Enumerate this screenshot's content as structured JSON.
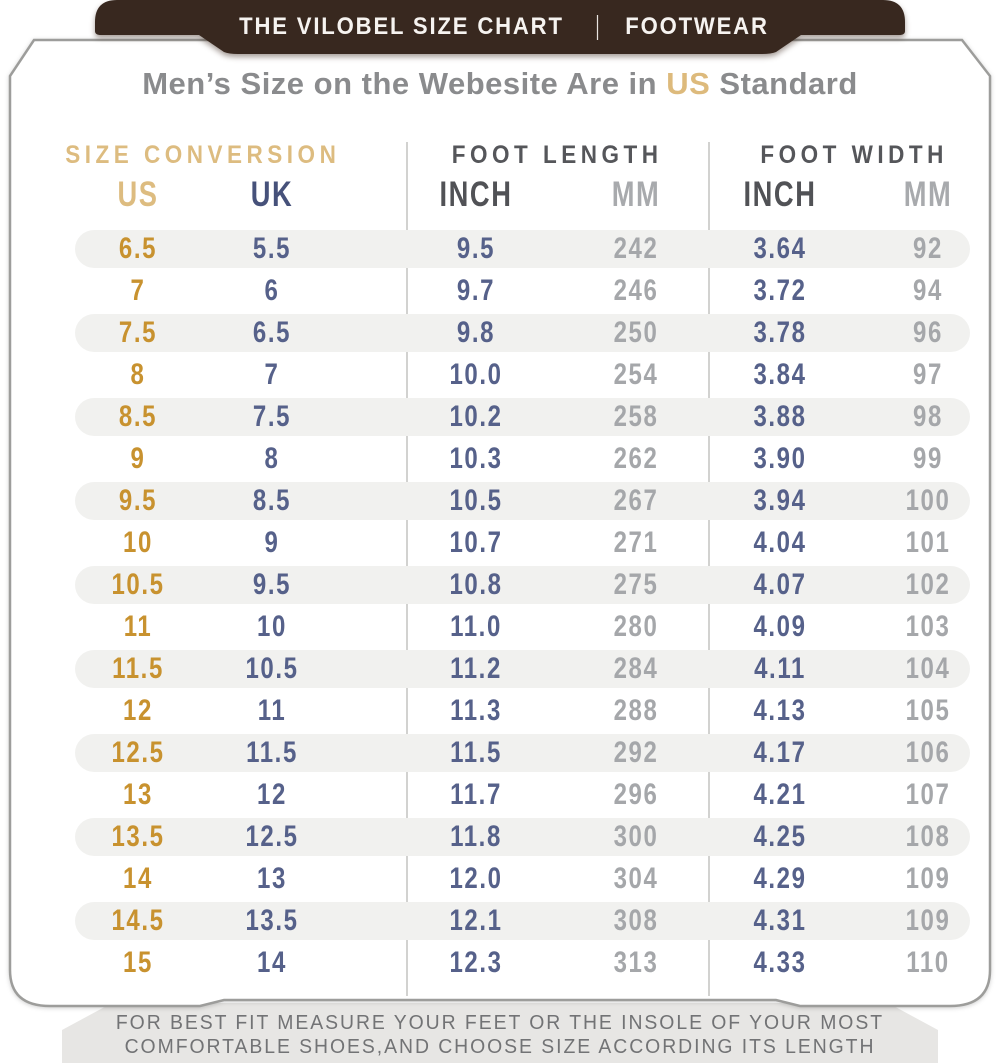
{
  "banner": {
    "left": "THE VILOBEL SIZE CHART",
    "separator": "|",
    "right": "FOOTWEAR"
  },
  "title": {
    "prefix": "Men’s Size on the Webesite Are in ",
    "highlight": "US",
    "suffix": " Standard"
  },
  "chart_data": {
    "type": "table",
    "title": "Men’s Size on the Webesite Are in US Standard",
    "groups": [
      {
        "label": "SIZE CONVERSION",
        "columns": [
          "US",
          "UK"
        ]
      },
      {
        "label": "FOOT LENGTH",
        "columns": [
          "INCH",
          "MM"
        ]
      },
      {
        "label": "FOOT WIDTH",
        "columns": [
          "INCH",
          "MM"
        ]
      }
    ],
    "column_headers": [
      "US",
      "UK",
      "INCH",
      "MM",
      "INCH",
      "MM"
    ],
    "rows": [
      [
        "6.5",
        "5.5",
        "9.5",
        "242",
        "3.64",
        "92"
      ],
      [
        "7",
        "6",
        "9.7",
        "246",
        "3.72",
        "94"
      ],
      [
        "7.5",
        "6.5",
        "9.8",
        "250",
        "3.78",
        "96"
      ],
      [
        "8",
        "7",
        "10.0",
        "254",
        "3.84",
        "97"
      ],
      [
        "8.5",
        "7.5",
        "10.2",
        "258",
        "3.88",
        "98"
      ],
      [
        "9",
        "8",
        "10.3",
        "262",
        "3.90",
        "99"
      ],
      [
        "9.5",
        "8.5",
        "10.5",
        "267",
        "3.94",
        "100"
      ],
      [
        "10",
        "9",
        "10.7",
        "271",
        "4.04",
        "101"
      ],
      [
        "10.5",
        "9.5",
        "10.8",
        "275",
        "4.07",
        "102"
      ],
      [
        "11",
        "10",
        "11.0",
        "280",
        "4.09",
        "103"
      ],
      [
        "11.5",
        "10.5",
        "11.2",
        "284",
        "4.11",
        "104"
      ],
      [
        "12",
        "11",
        "11.3",
        "288",
        "4.13",
        "105"
      ],
      [
        "12.5",
        "11.5",
        "11.5",
        "292",
        "4.17",
        "106"
      ],
      [
        "13",
        "12",
        "11.7",
        "296",
        "4.21",
        "107"
      ],
      [
        "13.5",
        "12.5",
        "11.8",
        "300",
        "4.25",
        "108"
      ],
      [
        "14",
        "13",
        "12.0",
        "304",
        "4.29",
        "109"
      ],
      [
        "14.5",
        "13.5",
        "12.1",
        "308",
        "4.31",
        "109"
      ],
      [
        "15",
        "14",
        "12.3",
        "313",
        "4.33",
        "110"
      ]
    ]
  },
  "footer": {
    "line1": "FOR BEST FIT MEASURE YOUR FEET OR THE INSOLE OF YOUR MOST",
    "line2": "COMFORTABLE SHOES,AND CHOOSE SIZE ACCORDING ITS LENGTH"
  },
  "colors": {
    "banner_bg": "#38281f",
    "banner_text": "#f6f3f0",
    "accent_gold_header": "#ddbc80",
    "value_gold": "#c8922f",
    "value_navy": "#56618a",
    "header_navy": "#46517a",
    "header_dark_gray": "#515256",
    "value_light_gray": "#a5a7aa",
    "title_gray": "#8a8b8d",
    "row_stripe": "#f1f1ef",
    "card_border": "#9d9d9b",
    "footer_bg": "#e7e6e4",
    "footer_text": "#727375"
  }
}
